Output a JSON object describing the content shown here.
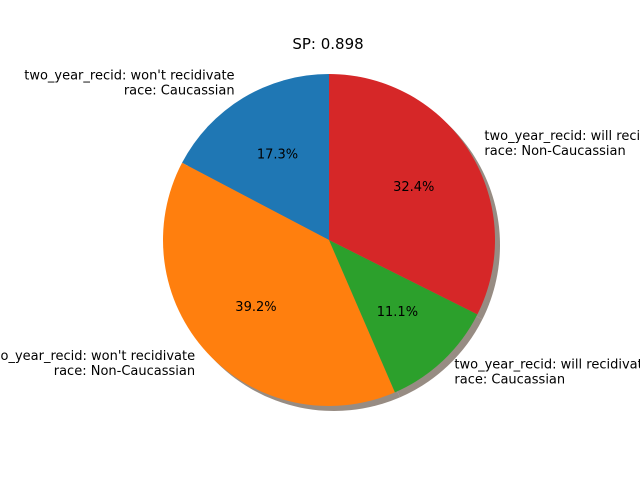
{
  "chart_data": {
    "type": "pie",
    "title": "SP: 0.898",
    "start_angle_deg": 90,
    "direction": "counterclockwise",
    "shadow": true,
    "slices": [
      {
        "label_lines": [
          "two_year_recid: won't recidivate",
          "race: Caucassian"
        ],
        "value": 17.3,
        "pct_label": "17.3%",
        "color": "#1f77b4"
      },
      {
        "label_lines": [
          "two_year_recid: won't recidivate",
          "race: Non-Caucassian"
        ],
        "value": 39.2,
        "pct_label": "39.2%",
        "color": "#ff7f0e"
      },
      {
        "label_lines": [
          "two_year_recid: will recidivate",
          "race: Caucassian"
        ],
        "value": 11.1,
        "pct_label": "11.1%",
        "color": "#2ca02c"
      },
      {
        "label_lines": [
          "two_year_recid: will recidivate",
          "race: Non-Caucassian"
        ],
        "value": 32.4,
        "pct_label": "32.4%",
        "color": "#d62728"
      }
    ]
  }
}
